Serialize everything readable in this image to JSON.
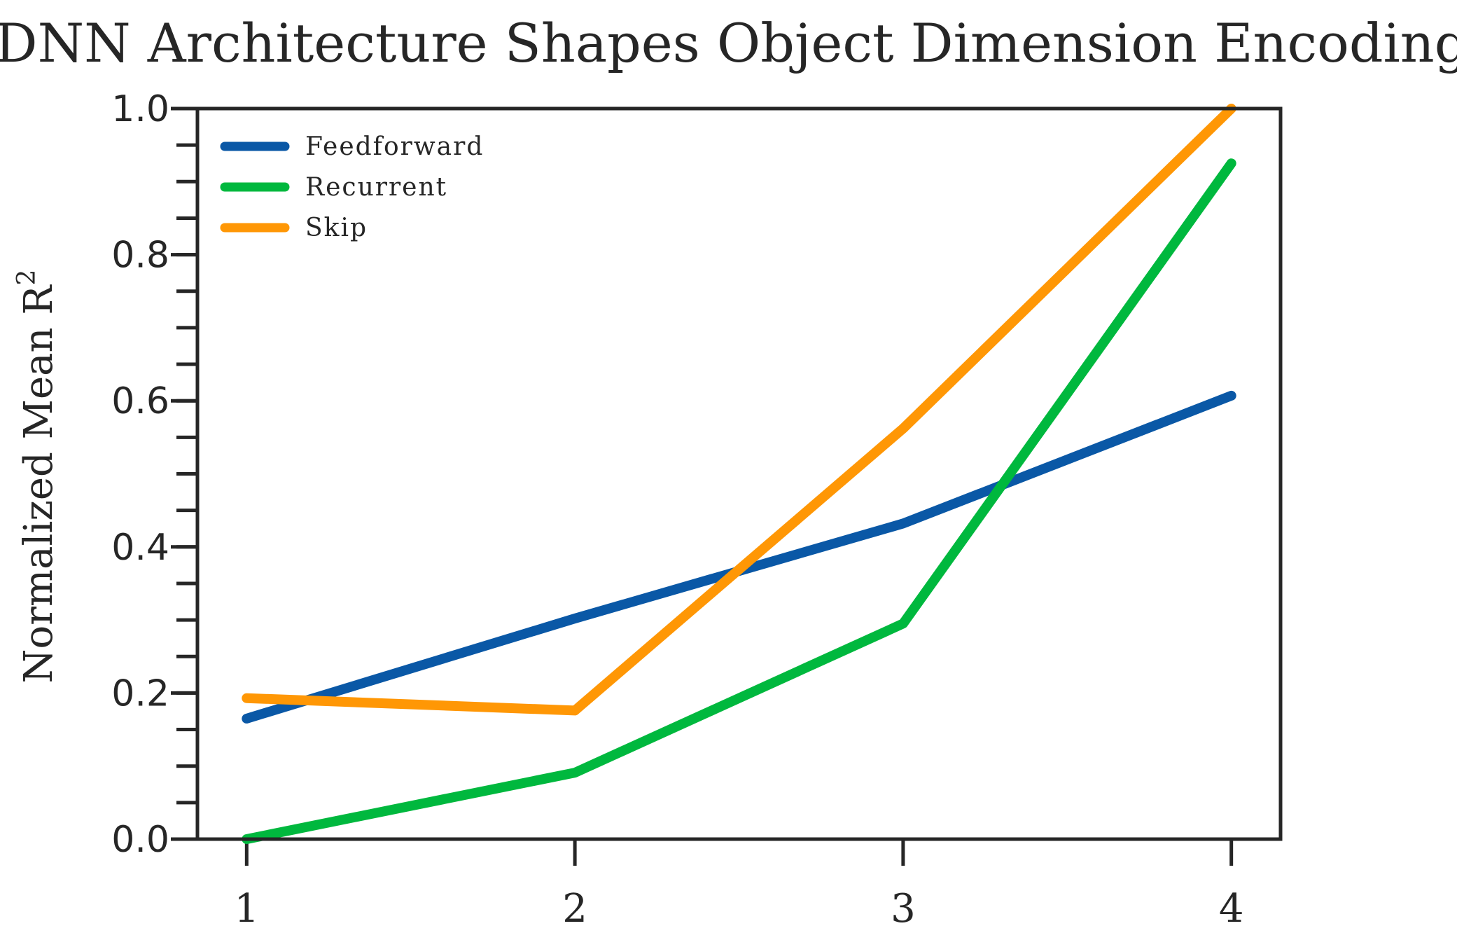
{
  "chart_data": {
    "type": "line",
    "title": "DNN Architecture Shapes Object Dimension Encoding",
    "xlabel": "",
    "ylabel": "Normalized Mean R",
    "ylabel_superscript": "2",
    "x": [
      1,
      2,
      3,
      4
    ],
    "xticks": [
      "1",
      "2",
      "3",
      "4"
    ],
    "xlim": [
      0.85,
      4.15
    ],
    "ylim": [
      0.0,
      1.0
    ],
    "yticks": [
      "0.0",
      "0.2",
      "0.4",
      "0.6",
      "0.8",
      "1.0"
    ],
    "ytick_values": [
      0.0,
      0.2,
      0.4,
      0.6,
      0.8,
      1.0
    ],
    "yminor_step": 0.05,
    "grid": false,
    "legend_position": "top-left",
    "series": [
      {
        "name": "Feedforward",
        "color": "#0a58a6",
        "values": [
          0.165,
          0.302,
          0.432,
          0.607
        ]
      },
      {
        "name": "Recurrent",
        "color": "#00b83e",
        "values": [
          0.0,
          0.091,
          0.295,
          0.925
        ]
      },
      {
        "name": "Skip",
        "color": "#ff9705",
        "values": [
          0.193,
          0.176,
          0.562,
          1.0
        ]
      }
    ]
  }
}
